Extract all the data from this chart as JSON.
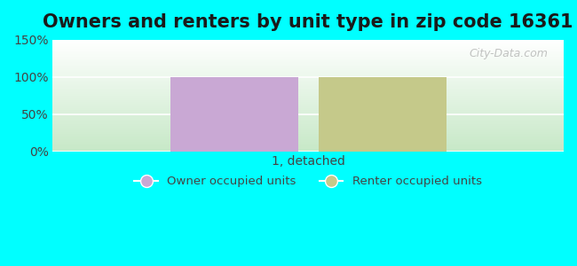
{
  "title": "Owners and renters by unit type in zip code 16361",
  "categories": [
    "1, detached"
  ],
  "owner_values": [
    100
  ],
  "renter_values": [
    100
  ],
  "owner_color": "#c9a8d4",
  "renter_color": "#c5c98a",
  "ylim": [
    0,
    150
  ],
  "yticks": [
    0,
    50,
    100,
    150
  ],
  "ytick_labels": [
    "0%",
    "50%",
    "100%",
    "150%"
  ],
  "background_color": "#00ffff",
  "bar_width": 0.25,
  "legend_owner": "Owner occupied units",
  "legend_renter": "Renter occupied units",
  "watermark": "City-Data.com",
  "title_fontsize": 15,
  "tick_fontsize": 10
}
